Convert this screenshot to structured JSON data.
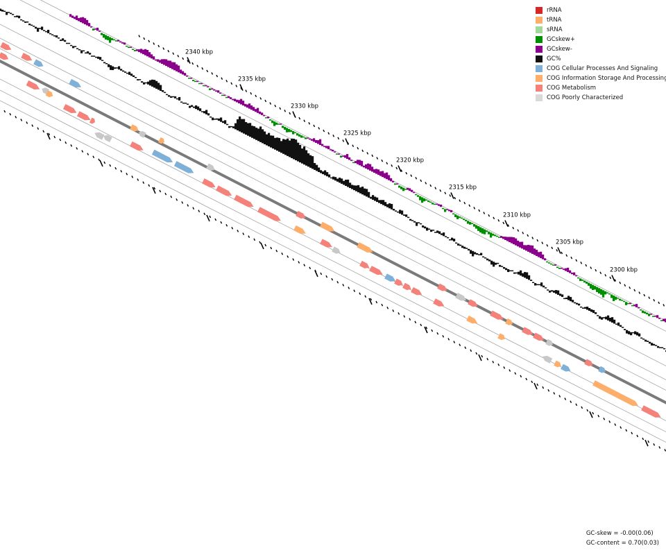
{
  "legend": [
    {
      "label": "rRNA",
      "color": "#d62728"
    },
    {
      "label": "tRNA",
      "color": "#fdae6b"
    },
    {
      "label": "sRNA",
      "color": "#a1d99b"
    },
    {
      "label": "GCskew+",
      "color": "#008f00"
    },
    {
      "label": "GCskew-",
      "color": "#8b008b"
    },
    {
      "label": "GC%",
      "color": "#111111"
    },
    {
      "label": "COG Cellular Processes And Signaling",
      "color": "#7fb1d8"
    },
    {
      "label": "COG Information Storage And Processing",
      "color": "#fdae6b"
    },
    {
      "label": "COG Metabolism",
      "color": "#f4827a"
    },
    {
      "label": "COG Poorly Characterized",
      "color": "#d9d9d9"
    }
  ],
  "position_ticks": [
    "2340 kbp",
    "2335 kbp",
    "2330 kbp",
    "2325 kbp",
    "2320 kbp",
    "2315 kbp",
    "2310 kbp",
    "2305 kbp",
    "2300 kbp"
  ],
  "stats": {
    "gc_skew": "GC-skew = -0.00(0.06)",
    "gc_content": "GC-content = 0.70(0.03)"
  },
  "colors": {
    "backbone": "#7a7a7a",
    "guide": "#999999",
    "cog_process": "#7fb1d8",
    "cog_info": "#fdae6b",
    "cog_metab": "#f4827a",
    "cog_poor": "#c8c8c8",
    "gc": "#111111",
    "skew_pos": "#008f00",
    "skew_neg": "#8b008b"
  }
}
